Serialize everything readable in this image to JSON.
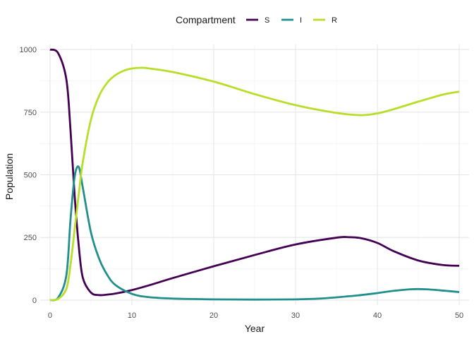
{
  "chart_data": {
    "type": "line",
    "xlabel": "Year",
    "ylabel": "Population",
    "xlim": [
      -1.2,
      51.2
    ],
    "ylim": [
      -20,
      1020
    ],
    "x_ticks": [
      0,
      10,
      20,
      30,
      40,
      50
    ],
    "x_tick_labels": [
      "0",
      "10",
      "20",
      "30",
      "40",
      "50"
    ],
    "y_ticks": [
      0,
      250,
      500,
      750,
      1000
    ],
    "y_tick_labels": [
      "0",
      "250",
      "500",
      "750",
      "1000"
    ],
    "grid": true,
    "legend": {
      "title": "Compartment",
      "position": "top"
    },
    "series": [
      {
        "name": "S",
        "color": "#440154",
        "x": [
          0,
          1,
          2,
          2.5,
          3,
          3.5,
          4,
          5,
          6,
          7,
          8,
          10,
          12,
          15,
          20,
          25,
          30,
          35,
          36.5,
          38,
          40,
          42,
          45,
          48,
          50
        ],
        "y": [
          1000,
          985,
          880,
          680,
          420,
          220,
          90,
          30,
          20,
          22,
          26,
          40,
          58,
          88,
          135,
          180,
          222,
          249,
          251,
          247,
          228,
          195,
          158,
          140,
          137
        ]
      },
      {
        "name": "I",
        "color": "#21908C",
        "x": [
          0,
          1,
          2,
          2.5,
          3,
          3.5,
          4,
          5,
          6,
          7,
          8,
          10,
          12,
          15,
          20,
          25,
          30,
          33,
          35,
          38,
          40,
          42,
          44,
          45,
          46,
          48,
          50
        ],
        "y": [
          0,
          10,
          100,
          320,
          490,
          532,
          450,
          270,
          165,
          100,
          60,
          25,
          12,
          6,
          3,
          2,
          3,
          6,
          11,
          20,
          28,
          37,
          43,
          44,
          43,
          38,
          32
        ]
      },
      {
        "name": "R",
        "color": "#B8DE29",
        "x": [
          0,
          1,
          2,
          2.5,
          3,
          3.5,
          4,
          5,
          6,
          7,
          8,
          9,
          10,
          11,
          12,
          15,
          20,
          25,
          30,
          35,
          38,
          40,
          42,
          45,
          48,
          50
        ],
        "y": [
          0,
          5,
          45,
          140,
          280,
          420,
          550,
          720,
          815,
          868,
          898,
          915,
          924,
          927,
          925,
          910,
          872,
          822,
          778,
          747,
          738,
          745,
          762,
          792,
          820,
          832
        ]
      }
    ]
  }
}
